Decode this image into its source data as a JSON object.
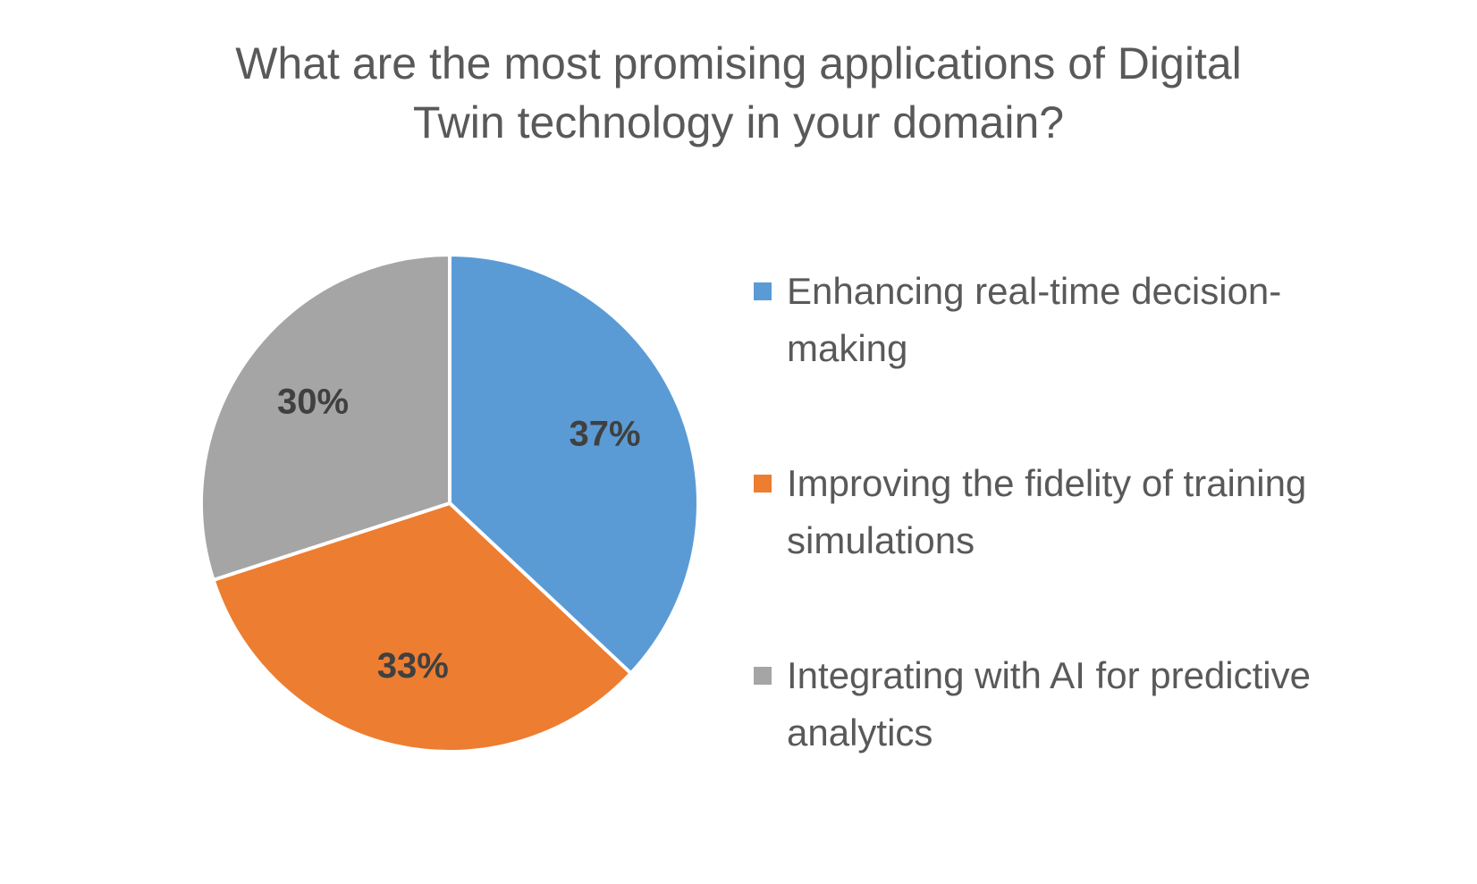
{
  "chart_data": {
    "type": "pie",
    "title": "What are the most promising applications of Digital Twin technology in your domain?",
    "categories": [
      "Enhancing real-time decision-making",
      "Improving the fidelity of training simulations",
      "Integrating with AI for predictive analytics"
    ],
    "values": [
      37,
      33,
      30
    ],
    "value_labels": [
      "37%",
      "33%",
      "30%"
    ],
    "colors": [
      "#5b9bd5",
      "#ed7d31",
      "#a5a5a5"
    ],
    "legend": "right"
  }
}
